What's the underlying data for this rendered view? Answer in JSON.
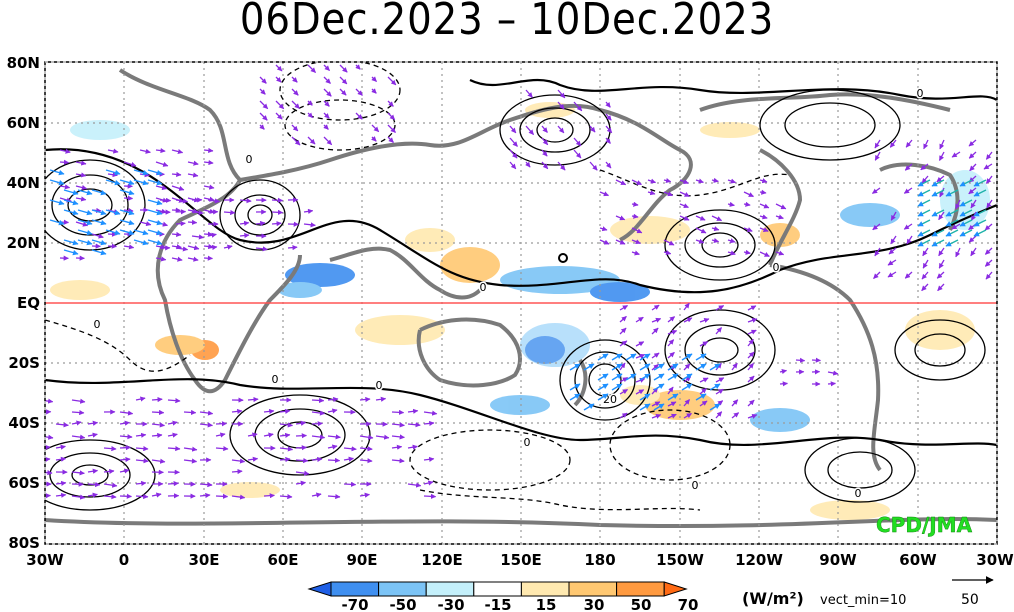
{
  "title": "06Dec.2023 – 10Dec.2023",
  "credit": "CPD/JMA",
  "units_label": "(W/m²)",
  "vector_min_label": "vect_min=10",
  "reference_vector_label": "50",
  "lat_labels": [
    "80N",
    "60N",
    "40N",
    "20N",
    "EQ",
    "20S",
    "40S",
    "60S",
    "80S"
  ],
  "lon_labels": [
    "30W",
    "0",
    "30E",
    "60E",
    "90E",
    "120E",
    "150E",
    "180",
    "150W",
    "120W",
    "90W",
    "60W",
    "30W"
  ],
  "colorbar": {
    "tick_labels": [
      "-70",
      "-50",
      "-30",
      "-15",
      "15",
      "30",
      "50",
      "70"
    ],
    "colors": [
      "#1f5fe6",
      "#3f8ff0",
      "#7cc4f6",
      "#c4f0fb",
      "#ffffff",
      "#ffe9b0",
      "#ffc872",
      "#ff9a40",
      "#ff6a14"
    ]
  },
  "contour_labels": [
    "0",
    "0",
    "0",
    "0",
    "0",
    "0",
    "0",
    "0",
    "0",
    "0",
    "20"
  ],
  "colors": {
    "vector": "#8a2be2",
    "strong_vector": "#1e90ff",
    "equator": "#ff5555",
    "coast": "#7a7a7a",
    "credit": "#22dd22"
  }
}
